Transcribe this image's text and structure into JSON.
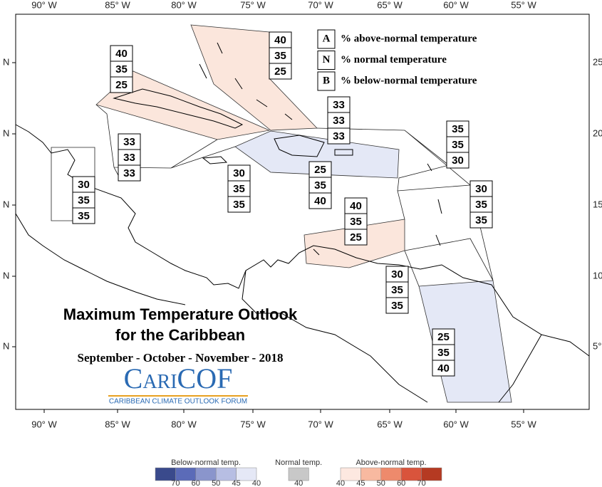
{
  "map": {
    "longitude_labels": [
      "90° W",
      "85° W",
      "80° W",
      "75° W",
      "70° W",
      "65° W",
      "60° W",
      "55° W"
    ],
    "latitude_labels_left": [
      "N",
      "N",
      "N",
      "N",
      "N"
    ],
    "latitude_labels_right": [
      "25",
      "20°",
      "15",
      "10",
      "5°"
    ],
    "regions": [
      {
        "above": 40,
        "normal": 35,
        "below": 25
      },
      {
        "above": 40,
        "normal": 35,
        "below": 25
      },
      {
        "above": 33,
        "normal": 33,
        "below": 33
      },
      {
        "above": 35,
        "normal": 35,
        "below": 30
      },
      {
        "above": 33,
        "normal": 33,
        "below": 33
      },
      {
        "above": 30,
        "normal": 35,
        "below": 35
      },
      {
        "above": 25,
        "normal": 35,
        "below": 40
      },
      {
        "above": 30,
        "normal": 35,
        "below": 35
      },
      {
        "above": 30,
        "normal": 35,
        "below": 35
      },
      {
        "above": 40,
        "normal": 35,
        "below": 25
      },
      {
        "above": 30,
        "normal": 35,
        "below": 35
      },
      {
        "above": 25,
        "normal": 35,
        "below": 40
      }
    ],
    "key": [
      {
        "letter": "A",
        "text": "% above-normal temperature"
      },
      {
        "letter": "N",
        "text": "% normal temperature"
      },
      {
        "letter": "B",
        "text": "% below-normal temperature"
      }
    ],
    "title": "Maximum Temperature Outlook",
    "subtitle": "for the Caribbean",
    "period": "September - October - November - 2018",
    "logo": {
      "name": "CariCOF",
      "tagline": "CARIBBEAN CLIMATE OUTLOOK FORUM"
    },
    "colorbar": {
      "below": {
        "title": "Below-normal temp.",
        "labels": [
          70,
          60,
          50,
          45,
          40
        ]
      },
      "normal": {
        "title": "Normal temp.",
        "labels": [
          40
        ]
      },
      "above": {
        "title": "Above-normal temp.",
        "labels": [
          40,
          45,
          50,
          60,
          70
        ]
      }
    }
  }
}
